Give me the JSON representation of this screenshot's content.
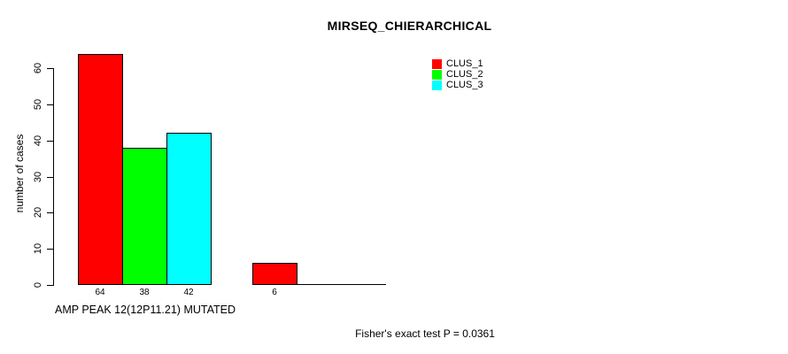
{
  "title": "MIRSEQ_CHIERARCHICAL",
  "footer": "Fisher's exact test P = 0.0361",
  "colors": {
    "background": "#ffffff",
    "axis": "#000000",
    "text": "#000000",
    "clus_1": "#ff0000",
    "clus_2": "#00ff00",
    "clus_3": "#00ffff"
  },
  "chart_data": {
    "type": "bar",
    "title": "MIRSEQ_CHIERARCHICAL",
    "ylabel": "number of cases",
    "xlabel": "",
    "ylim": [
      0,
      60
    ],
    "yticks": [
      0,
      10,
      20,
      30,
      40,
      50,
      60
    ],
    "grid": false,
    "legend_position": "top-right",
    "group_labels": [
      "AMP PEAK 12(12P11.21) MUTATED",
      ""
    ],
    "series": [
      {
        "name": "CLUS_1",
        "color": "#ff0000",
        "values": [
          64,
          6
        ]
      },
      {
        "name": "CLUS_2",
        "color": "#00ff00",
        "values": [
          38,
          0
        ]
      },
      {
        "name": "CLUS_3",
        "color": "#00ffff",
        "values": [
          42,
          0
        ]
      }
    ],
    "annotation": "Fisher's exact test P = 0.0361"
  }
}
